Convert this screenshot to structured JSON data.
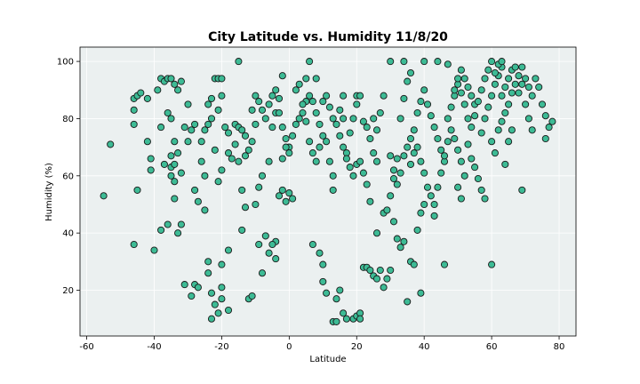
{
  "chart_data": {
    "type": "scatter",
    "title": "City Latitude vs. Humidity 11/8/20",
    "xlabel": "Latitude",
    "ylabel": "Humidity (%)",
    "xlim": [
      -62,
      85
    ],
    "ylim": [
      4,
      105
    ],
    "xticks": [
      -60,
      -40,
      -20,
      0,
      20,
      40,
      60,
      80
    ],
    "yticks": [
      20,
      40,
      60,
      80,
      100
    ],
    "grid": true,
    "background_color": "#ebf0f0",
    "grid_color": "#ffffff",
    "marker_color": "#3dbb95",
    "marker_edge_color": "#1a1a1a",
    "points": [
      [
        -55,
        53
      ],
      [
        -53,
        71
      ],
      [
        -46,
        87
      ],
      [
        -45,
        88
      ],
      [
        -44,
        89
      ],
      [
        -46,
        78
      ],
      [
        -46,
        83
      ],
      [
        -46,
        36
      ],
      [
        -45,
        55
      ],
      [
        -42,
        87
      ],
      [
        -42,
        72
      ],
      [
        -41,
        66
      ],
      [
        -41,
        62
      ],
      [
        -40,
        34
      ],
      [
        -39,
        90
      ],
      [
        -38,
        94
      ],
      [
        -37,
        93
      ],
      [
        -36,
        94
      ],
      [
        -35,
        94
      ],
      [
        -34,
        92
      ],
      [
        -33,
        90
      ],
      [
        -32,
        93
      ],
      [
        -38,
        77
      ],
      [
        -37,
        64
      ],
      [
        -36,
        82
      ],
      [
        -35,
        80
      ],
      [
        -34,
        72
      ],
      [
        -35,
        63
      ],
      [
        -35,
        60
      ],
      [
        -34,
        58
      ],
      [
        -34,
        52
      ],
      [
        -33,
        40
      ],
      [
        -32,
        43
      ],
      [
        -36,
        43
      ],
      [
        -38,
        41
      ],
      [
        -35,
        67
      ],
      [
        -34,
        64
      ],
      [
        -33,
        68
      ],
      [
        -32,
        61
      ],
      [
        -31,
        77
      ],
      [
        -30,
        72
      ],
      [
        -29,
        76
      ],
      [
        -31,
        22
      ],
      [
        -29,
        18
      ],
      [
        -28,
        22
      ],
      [
        -27,
        21
      ],
      [
        -28,
        55
      ],
      [
        -27,
        51
      ],
      [
        -26,
        72
      ],
      [
        -25,
        76
      ],
      [
        -24,
        78
      ],
      [
        -23,
        80
      ],
      [
        -24,
        85
      ],
      [
        -23,
        87
      ],
      [
        -30,
        85
      ],
      [
        -28,
        78
      ],
      [
        -26,
        65
      ],
      [
        -25,
        60
      ],
      [
        -25,
        48
      ],
      [
        -24,
        30
      ],
      [
        -24,
        26
      ],
      [
        -23,
        19
      ],
      [
        -22,
        15
      ],
      [
        -21,
        12
      ],
      [
        -20,
        29
      ],
      [
        -20,
        21
      ],
      [
        -20,
        17
      ],
      [
        -23,
        10
      ],
      [
        -18,
        13
      ],
      [
        -18,
        34
      ],
      [
        -21,
        58
      ],
      [
        -20,
        62
      ],
      [
        -22,
        69
      ],
      [
        -21,
        83
      ],
      [
        -20,
        88
      ],
      [
        -22,
        94
      ],
      [
        -21,
        94
      ],
      [
        -20,
        94
      ],
      [
        -19,
        77
      ],
      [
        -18,
        75
      ],
      [
        -18,
        68
      ],
      [
        -17,
        66
      ],
      [
        -16,
        71
      ],
      [
        -15,
        65
      ],
      [
        -16,
        78
      ],
      [
        -15,
        77
      ],
      [
        -14,
        76
      ],
      [
        -13,
        74
      ],
      [
        -14,
        55
      ],
      [
        -13,
        49
      ],
      [
        -14,
        41
      ],
      [
        -13,
        67
      ],
      [
        -12,
        69
      ],
      [
        -11,
        72
      ],
      [
        -10,
        78
      ],
      [
        -11,
        83
      ],
      [
        -10,
        88
      ],
      [
        -9,
        86
      ],
      [
        -8,
        83
      ],
      [
        -15,
        100
      ],
      [
        -12,
        17
      ],
      [
        -11,
        18
      ],
      [
        -10,
        50
      ],
      [
        -9,
        56
      ],
      [
        -8,
        60
      ],
      [
        -9,
        36
      ],
      [
        -8,
        26
      ],
      [
        -7,
        39
      ],
      [
        -6,
        65
      ],
      [
        -5,
        77
      ],
      [
        -4,
        82
      ],
      [
        -3,
        87
      ],
      [
        -2,
        95
      ],
      [
        -4,
        37
      ],
      [
        -5,
        36
      ],
      [
        -6,
        33
      ],
      [
        -4,
        31
      ],
      [
        -7,
        80
      ],
      [
        -6,
        85
      ],
      [
        -5,
        88
      ],
      [
        -4,
        90
      ],
      [
        -3,
        82
      ],
      [
        -2,
        77
      ],
      [
        -1,
        73
      ],
      [
        0,
        70
      ],
      [
        -2,
        66
      ],
      [
        -1,
        70
      ],
      [
        -3,
        53
      ],
      [
        -2,
        55
      ],
      [
        -1,
        51
      ],
      [
        0,
        54
      ],
      [
        1,
        52
      ],
      [
        0,
        68
      ],
      [
        1,
        74
      ],
      [
        2,
        78
      ],
      [
        3,
        80
      ],
      [
        4,
        82
      ],
      [
        5,
        86
      ],
      [
        6,
        88
      ],
      [
        2,
        90
      ],
      [
        3,
        92
      ],
      [
        4,
        85
      ],
      [
        5,
        79
      ],
      [
        6,
        72
      ],
      [
        7,
        68
      ],
      [
        8,
        65
      ],
      [
        9,
        70
      ],
      [
        10,
        74
      ],
      [
        9,
        78
      ],
      [
        8,
        82
      ],
      [
        7,
        86
      ],
      [
        5,
        94
      ],
      [
        6,
        100
      ],
      [
        8,
        94
      ],
      [
        7,
        36
      ],
      [
        9,
        33
      ],
      [
        10,
        29
      ],
      [
        10,
        23
      ],
      [
        11,
        19
      ],
      [
        10,
        86
      ],
      [
        11,
        88
      ],
      [
        12,
        84
      ],
      [
        13,
        80
      ],
      [
        11,
        72
      ],
      [
        12,
        65
      ],
      [
        13,
        60
      ],
      [
        13,
        55
      ],
      [
        14,
        78
      ],
      [
        15,
        83
      ],
      [
        16,
        88
      ],
      [
        15,
        74
      ],
      [
        16,
        70
      ],
      [
        17,
        68
      ],
      [
        18,
        75
      ],
      [
        19,
        80
      ],
      [
        20,
        85
      ],
      [
        20,
        88
      ],
      [
        21,
        88
      ],
      [
        13,
        9
      ],
      [
        14,
        9
      ],
      [
        14,
        17
      ],
      [
        15,
        20
      ],
      [
        16,
        12
      ],
      [
        17,
        10
      ],
      [
        19,
        10
      ],
      [
        20,
        11
      ],
      [
        21,
        12
      ],
      [
        21,
        10
      ],
      [
        16,
        80
      ],
      [
        17,
        66
      ],
      [
        18,
        63
      ],
      [
        19,
        60
      ],
      [
        20,
        64
      ],
      [
        21,
        65
      ],
      [
        22,
        61
      ],
      [
        23,
        57
      ],
      [
        24,
        51
      ],
      [
        22,
        79
      ],
      [
        23,
        77
      ],
      [
        24,
        73
      ],
      [
        25,
        68
      ],
      [
        26,
        65
      ],
      [
        25,
        80
      ],
      [
        26,
        76
      ],
      [
        27,
        82
      ],
      [
        28,
        88
      ],
      [
        22,
        28
      ],
      [
        23,
        28
      ],
      [
        24,
        27
      ],
      [
        25,
        25
      ],
      [
        26,
        24
      ],
      [
        27,
        27
      ],
      [
        28,
        21
      ],
      [
        29,
        24
      ],
      [
        30,
        27
      ],
      [
        26,
        40
      ],
      [
        28,
        47
      ],
      [
        29,
        48
      ],
      [
        30,
        53
      ],
      [
        31,
        59
      ],
      [
        32,
        57
      ],
      [
        33,
        61
      ],
      [
        34,
        67
      ],
      [
        35,
        70
      ],
      [
        36,
        73
      ],
      [
        30,
        67
      ],
      [
        31,
        62
      ],
      [
        32,
        66
      ],
      [
        33,
        80
      ],
      [
        34,
        87
      ],
      [
        35,
        93
      ],
      [
        36,
        96
      ],
      [
        30,
        100
      ],
      [
        34,
        100
      ],
      [
        31,
        44
      ],
      [
        32,
        38
      ],
      [
        33,
        35
      ],
      [
        34,
        37
      ],
      [
        35,
        16
      ],
      [
        36,
        30
      ],
      [
        37,
        29
      ],
      [
        38,
        41
      ],
      [
        39,
        47
      ],
      [
        40,
        50
      ],
      [
        36,
        64
      ],
      [
        37,
        68
      ],
      [
        38,
        70
      ],
      [
        39,
        65
      ],
      [
        40,
        61
      ],
      [
        41,
        56
      ],
      [
        42,
        53
      ],
      [
        43,
        50
      ],
      [
        37,
        76
      ],
      [
        38,
        82
      ],
      [
        39,
        86
      ],
      [
        40,
        90
      ],
      [
        41,
        85
      ],
      [
        42,
        81
      ],
      [
        43,
        77
      ],
      [
        44,
        73
      ],
      [
        45,
        69
      ],
      [
        46,
        65
      ],
      [
        40,
        100
      ],
      [
        44,
        100
      ],
      [
        39,
        19
      ],
      [
        43,
        46
      ],
      [
        46,
        29
      ],
      [
        44,
        56
      ],
      [
        45,
        61
      ],
      [
        46,
        67
      ],
      [
        47,
        72
      ],
      [
        48,
        76
      ],
      [
        47,
        80
      ],
      [
        48,
        84
      ],
      [
        49,
        88
      ],
      [
        50,
        92
      ],
      [
        51,
        89
      ],
      [
        52,
        85
      ],
      [
        53,
        80
      ],
      [
        49,
        73
      ],
      [
        50,
        69
      ],
      [
        51,
        65
      ],
      [
        52,
        60
      ],
      [
        50,
        56
      ],
      [
        51,
        52
      ],
      [
        49,
        90
      ],
      [
        50,
        94
      ],
      [
        51,
        97
      ],
      [
        47,
        99
      ],
      [
        52,
        94
      ],
      [
        53,
        91
      ],
      [
        54,
        88
      ],
      [
        55,
        85
      ],
      [
        53,
        71
      ],
      [
        54,
        66
      ],
      [
        55,
        63
      ],
      [
        56,
        59
      ],
      [
        57,
        55
      ],
      [
        58,
        52
      ],
      [
        54,
        77
      ],
      [
        55,
        81
      ],
      [
        56,
        86
      ],
      [
        57,
        90
      ],
      [
        58,
        94
      ],
      [
        59,
        97
      ],
      [
        60,
        100
      ],
      [
        57,
        75
      ],
      [
        58,
        80
      ],
      [
        59,
        84
      ],
      [
        60,
        88
      ],
      [
        61,
        92
      ],
      [
        62,
        95
      ],
      [
        63,
        98
      ],
      [
        60,
        72
      ],
      [
        61,
        68
      ],
      [
        60,
        29
      ],
      [
        62,
        76
      ],
      [
        63,
        79
      ],
      [
        64,
        82
      ],
      [
        65,
        85
      ],
      [
        66,
        89
      ],
      [
        67,
        92
      ],
      [
        68,
        95
      ],
      [
        69,
        98
      ],
      [
        64,
        64
      ],
      [
        65,
        72
      ],
      [
        66,
        76
      ],
      [
        61,
        96
      ],
      [
        62,
        99
      ],
      [
        63,
        88
      ],
      [
        64,
        91
      ],
      [
        65,
        94
      ],
      [
        66,
        97
      ],
      [
        67,
        98
      ],
      [
        68,
        89
      ],
      [
        69,
        92
      ],
      [
        70,
        94
      ],
      [
        71,
        91
      ],
      [
        72,
        88
      ],
      [
        70,
        85
      ],
      [
        71,
        80
      ],
      [
        72,
        76
      ],
      [
        69,
        55
      ],
      [
        73,
        94
      ],
      [
        74,
        91
      ],
      [
        75,
        85
      ],
      [
        76,
        81
      ],
      [
        77,
        77
      ],
      [
        76,
        73
      ],
      [
        78,
        79
      ],
      [
        63,
        100
      ]
    ]
  }
}
